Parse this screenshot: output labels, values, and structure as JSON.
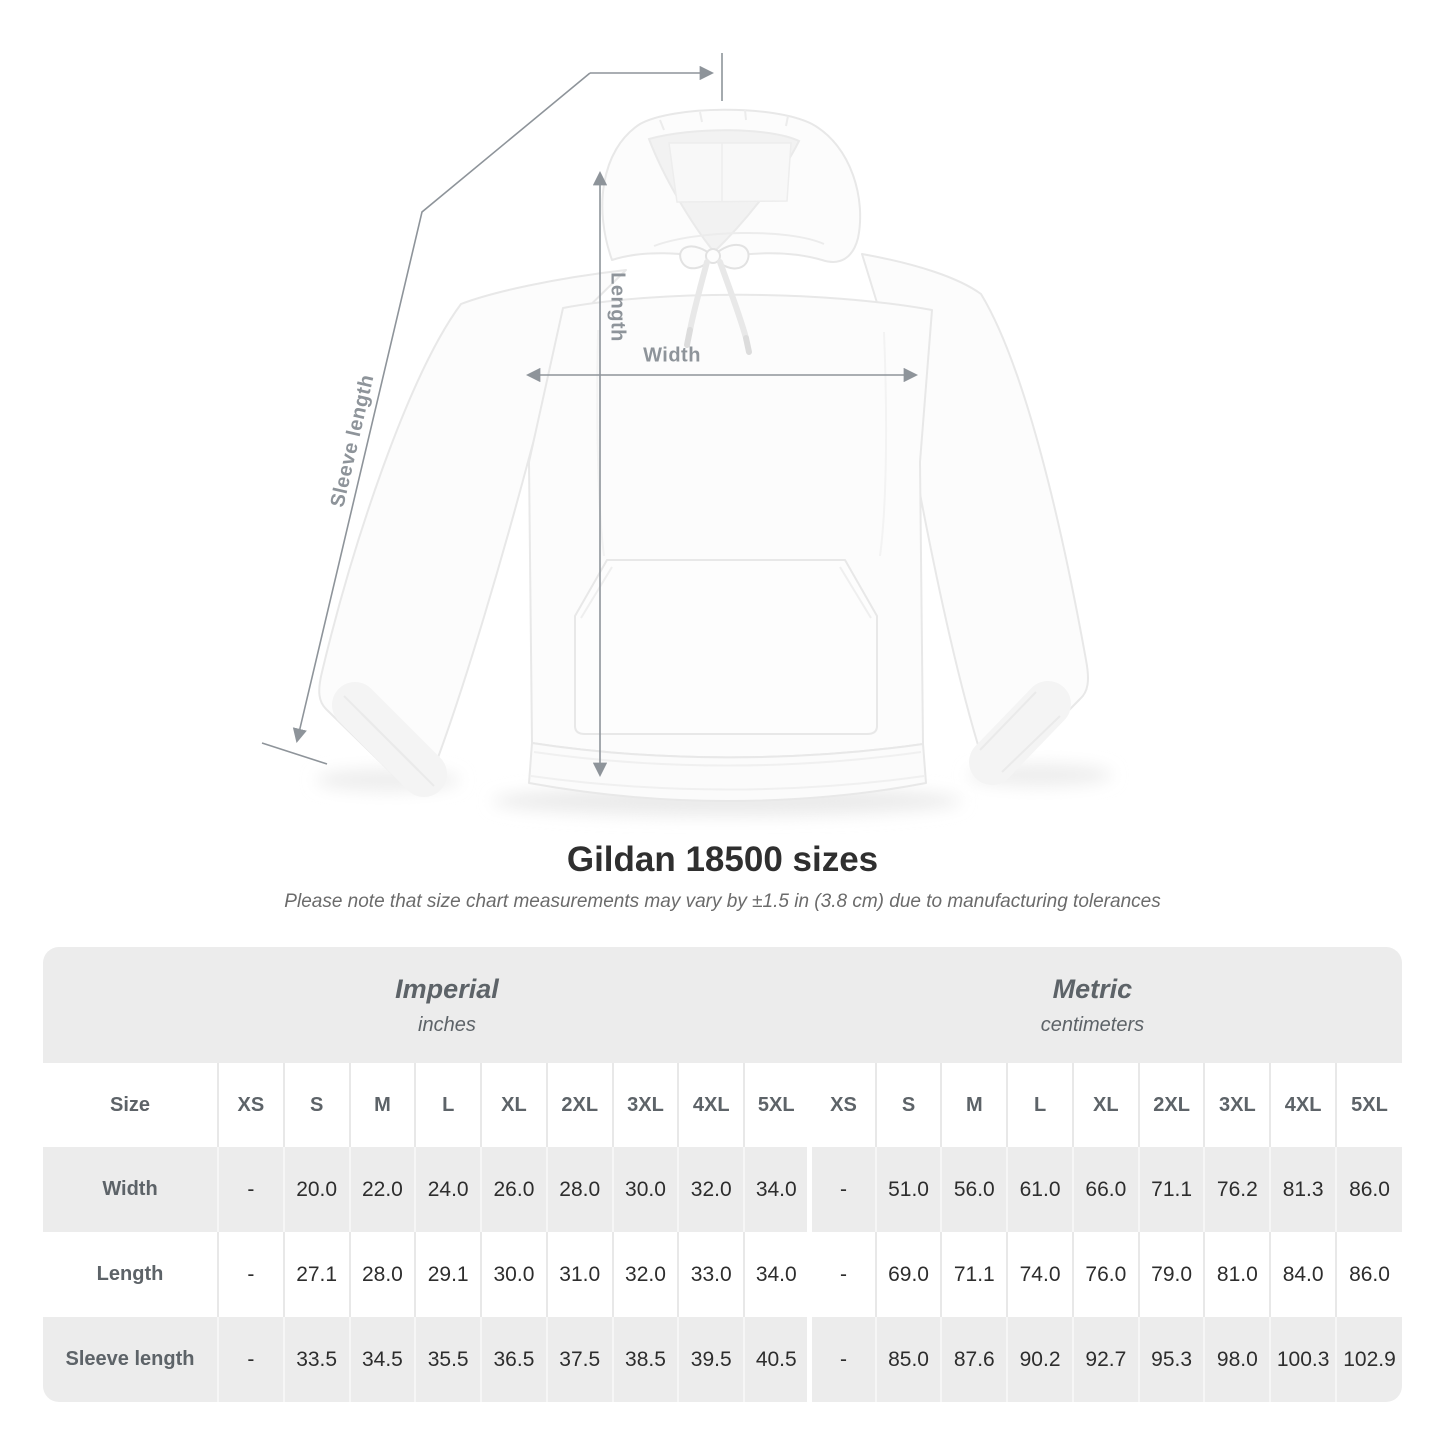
{
  "figure": {
    "labels": {
      "sleeve": "Sleeve length",
      "length": "Length",
      "width": "Width"
    }
  },
  "heading": {
    "title": "Gildan 18500 sizes",
    "subtitle": "Please note that size chart measurements may vary by ±1.5 in (3.8 cm) due to manufacturing tolerances"
  },
  "chart_data": {
    "type": "table",
    "title": "Gildan 18500 sizes",
    "sections": [
      {
        "label": "Imperial",
        "unit": "inches"
      },
      {
        "label": "Metric",
        "unit": "centimeters"
      }
    ],
    "size_header": "Size",
    "sizes": [
      "XS",
      "S",
      "M",
      "L",
      "XL",
      "2XL",
      "3XL",
      "4XL",
      "5XL"
    ],
    "rows": [
      {
        "label": "Width",
        "imperial": [
          "-",
          "20.0",
          "22.0",
          "24.0",
          "26.0",
          "28.0",
          "30.0",
          "32.0",
          "34.0"
        ],
        "metric": [
          "-",
          "51.0",
          "56.0",
          "61.0",
          "66.0",
          "71.1",
          "76.2",
          "81.3",
          "86.0"
        ]
      },
      {
        "label": "Length",
        "imperial": [
          "-",
          "27.1",
          "28.0",
          "29.1",
          "30.0",
          "31.0",
          "32.0",
          "33.0",
          "34.0"
        ],
        "metric": [
          "-",
          "69.0",
          "71.1",
          "74.0",
          "76.0",
          "79.0",
          "81.0",
          "84.0",
          "86.0"
        ]
      },
      {
        "label": "Sleeve length",
        "imperial": [
          "-",
          "33.5",
          "34.5",
          "35.5",
          "36.5",
          "37.5",
          "38.5",
          "39.5",
          "40.5"
        ],
        "metric": [
          "-",
          "85.0",
          "87.6",
          "90.2",
          "92.7",
          "95.3",
          "98.0",
          "100.3",
          "102.9"
        ]
      }
    ]
  },
  "colors": {
    "measurement_gray": "#8e949a",
    "band_gray": "#ececec",
    "header_text": "#5d6368",
    "value_text": "#2d2d2d"
  }
}
